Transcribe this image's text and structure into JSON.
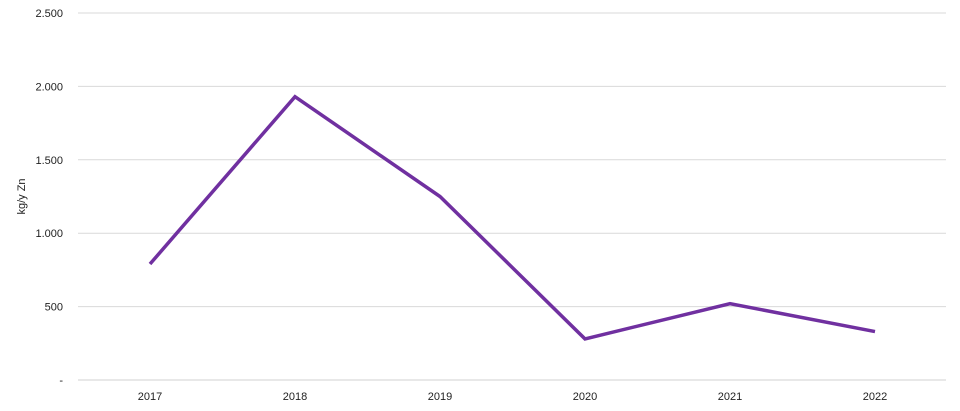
{
  "chart_data": {
    "type": "line",
    "title": "",
    "xlabel": "",
    "ylabel": "kg/y Zn",
    "categories": [
      "2017",
      "2018",
      "2019",
      "2020",
      "2021",
      "2022"
    ],
    "series": [
      {
        "values": [
          790,
          1930,
          1250,
          280,
          520,
          330
        ],
        "color": "#7030A0"
      }
    ],
    "ylim": [
      0,
      2500
    ],
    "yticks": [
      0,
      500,
      1000,
      1500,
      2000,
      2500
    ],
    "ytick_labels": [
      "-",
      "500",
      "1.000",
      "1.500",
      "2.000",
      "2.500"
    ],
    "grid": true,
    "legend": "none",
    "colors": {
      "line": "#7030A0",
      "grid": "#d9d9d9"
    }
  }
}
